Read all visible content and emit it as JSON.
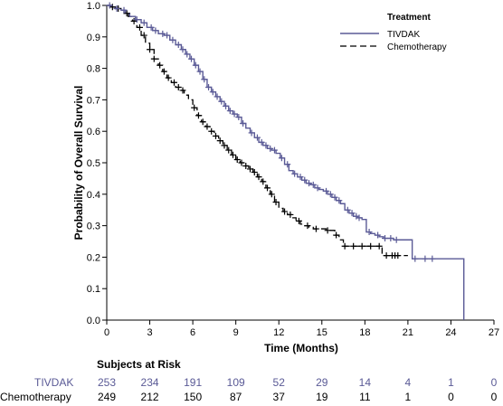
{
  "chart_data": {
    "type": "line",
    "subtype": "kaplan-meier",
    "xlabel": "Time (Months)",
    "ylabel": "Probability of Overall Survival",
    "xlim": [
      0,
      27
    ],
    "ylim": [
      0,
      1
    ],
    "x_ticks": [
      "0",
      "3",
      "6",
      "9",
      "12",
      "15",
      "18",
      "21",
      "24",
      "27"
    ],
    "y_ticks": [
      "0.0",
      "0.1",
      "0.2",
      "0.3",
      "0.4",
      "0.5",
      "0.6",
      "0.7",
      "0.8",
      "0.9",
      "1.0"
    ],
    "grid": false,
    "legend": {
      "title": "Treatment",
      "position": "top-right",
      "entries": [
        {
          "label": "TIVDAK",
          "style": "solid",
          "color": "#5a5a96"
        },
        {
          "label": "Chemotherapy",
          "style": "dashed",
          "color": "#000000"
        }
      ]
    },
    "series": [
      {
        "name": "TIVDAK",
        "color": "#5a5a96",
        "style": "solid",
        "x": [
          0,
          0.3,
          0.6,
          1.0,
          1.3,
          1.6,
          2.0,
          2.4,
          2.8,
          3.2,
          3.6,
          4.0,
          4.4,
          4.8,
          5.2,
          5.5,
          5.8,
          6.1,
          6.4,
          6.7,
          7.0,
          7.3,
          7.6,
          7.9,
          8.2,
          8.5,
          8.8,
          9.1,
          9.4,
          9.7,
          10.0,
          10.3,
          10.6,
          10.9,
          11.2,
          11.5,
          11.8,
          12.1,
          12.4,
          12.7,
          13.0,
          13.3,
          13.6,
          13.9,
          14.2,
          14.5,
          14.8,
          15.1,
          15.4,
          15.7,
          16.0,
          16.3,
          16.6,
          16.9,
          17.2,
          17.5,
          17.8,
          18.1,
          18.4,
          18.7,
          19.0,
          19.3,
          19.6,
          20.0,
          20.5,
          21.0,
          21.3,
          22.0,
          23.0,
          24.0,
          24.9,
          24.9
        ],
        "y": [
          1.0,
          0.995,
          0.99,
          0.985,
          0.975,
          0.965,
          0.955,
          0.945,
          0.93,
          0.92,
          0.91,
          0.905,
          0.89,
          0.875,
          0.86,
          0.845,
          0.83,
          0.81,
          0.79,
          0.765,
          0.74,
          0.725,
          0.71,
          0.695,
          0.68,
          0.665,
          0.655,
          0.645,
          0.625,
          0.61,
          0.595,
          0.58,
          0.565,
          0.555,
          0.545,
          0.54,
          0.53,
          0.515,
          0.495,
          0.475,
          0.465,
          0.455,
          0.445,
          0.435,
          0.43,
          0.42,
          0.415,
          0.41,
          0.4,
          0.39,
          0.38,
          0.37,
          0.35,
          0.34,
          0.33,
          0.325,
          0.32,
          0.28,
          0.275,
          0.27,
          0.265,
          0.26,
          0.26,
          0.255,
          0.255,
          0.255,
          0.195,
          0.195,
          0.195,
          0.195,
          0.195,
          0.0
        ],
        "censored": [
          0.2,
          0.7,
          1.2,
          2.1,
          2.6,
          3.1,
          3.4,
          3.9,
          4.2,
          4.6,
          5.0,
          5.3,
          5.6,
          5.9,
          6.2,
          6.5,
          6.8,
          7.1,
          7.4,
          7.7,
          8.0,
          8.3,
          8.6,
          8.9,
          9.2,
          9.5,
          10.1,
          10.5,
          10.8,
          11.1,
          11.4,
          11.7,
          12.2,
          12.6,
          13.1,
          13.5,
          13.8,
          14.1,
          14.4,
          14.7,
          15.3,
          15.6,
          15.9,
          16.2,
          16.8,
          17.1,
          17.4,
          17.6,
          18.3,
          18.9,
          19.4,
          19.8,
          20.2,
          21.5,
          22.2,
          22.7
        ]
      },
      {
        "name": "Chemotherapy",
        "color": "#000000",
        "style": "dashed",
        "x": [
          0,
          0.3,
          0.6,
          0.9,
          1.2,
          1.5,
          1.8,
          2.1,
          2.4,
          2.7,
          3.0,
          3.3,
          3.6,
          3.9,
          4.2,
          4.5,
          4.8,
          5.1,
          5.4,
          5.7,
          6.0,
          6.3,
          6.6,
          6.9,
          7.2,
          7.5,
          7.8,
          8.1,
          8.4,
          8.7,
          9.0,
          9.3,
          9.6,
          9.9,
          10.2,
          10.5,
          10.8,
          11.1,
          11.4,
          11.7,
          12.0,
          12.3,
          12.6,
          12.9,
          13.2,
          13.5,
          13.8,
          14.1,
          14.4,
          14.7,
          15.0,
          15.3,
          15.6,
          15.9,
          16.2,
          16.5,
          16.8,
          17.4,
          18.0,
          18.6,
          19.2,
          19.8,
          20.4,
          21.0
        ],
        "y": [
          1.0,
          0.995,
          0.99,
          0.985,
          0.975,
          0.965,
          0.95,
          0.93,
          0.905,
          0.88,
          0.86,
          0.83,
          0.81,
          0.79,
          0.77,
          0.755,
          0.74,
          0.73,
          0.715,
          0.7,
          0.675,
          0.65,
          0.63,
          0.615,
          0.6,
          0.585,
          0.57,
          0.555,
          0.54,
          0.525,
          0.51,
          0.5,
          0.49,
          0.48,
          0.47,
          0.455,
          0.44,
          0.42,
          0.4,
          0.375,
          0.355,
          0.345,
          0.335,
          0.325,
          0.315,
          0.305,
          0.3,
          0.295,
          0.29,
          0.29,
          0.29,
          0.285,
          0.285,
          0.27,
          0.255,
          0.235,
          0.235,
          0.235,
          0.235,
          0.235,
          0.205,
          0.205,
          0.205,
          0.205
        ],
        "censored": [
          0.4,
          0.8,
          1.4,
          1.9,
          2.3,
          2.6,
          3.0,
          3.3,
          3.7,
          4.0,
          4.3,
          4.7,
          5.0,
          5.3,
          6.1,
          6.4,
          6.7,
          7.0,
          7.3,
          7.6,
          7.9,
          8.2,
          8.5,
          8.8,
          9.1,
          9.4,
          9.7,
          10.0,
          10.3,
          10.6,
          10.9,
          11.2,
          11.5,
          11.8,
          12.4,
          12.8,
          13.4,
          14.0,
          14.6,
          15.4,
          16.0,
          16.6,
          17.2,
          17.8,
          18.4,
          19.0,
          19.5,
          19.9,
          20.1,
          20.3
        ]
      }
    ]
  },
  "risk_table": {
    "title": "Subjects at Risk",
    "times": [
      0,
      3,
      6,
      9,
      12,
      15,
      18,
      21,
      24,
      27
    ],
    "rows": [
      {
        "label": "TIVDAK",
        "color": "#5a5a96",
        "values": [
          "253",
          "234",
          "191",
          "109",
          "52",
          "29",
          "14",
          "4",
          "1",
          "0"
        ]
      },
      {
        "label": "Chemotherapy",
        "color": "#000000",
        "values": [
          "249",
          "212",
          "150",
          "87",
          "37",
          "19",
          "11",
          "1",
          "0",
          "0"
        ]
      }
    ]
  }
}
